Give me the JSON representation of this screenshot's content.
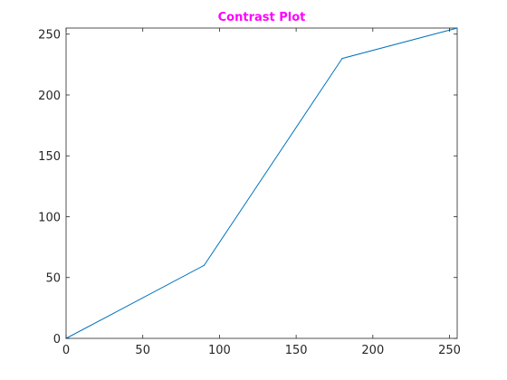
{
  "chart_data": {
    "type": "line",
    "title": "Contrast Plot",
    "title_color": "#ff00ff",
    "line_color": "#0072bd",
    "axis_color": "#262626",
    "xlim": [
      0,
      255
    ],
    "ylim": [
      0,
      255
    ],
    "xticks": [
      0,
      50,
      100,
      150,
      200,
      250
    ],
    "yticks": [
      0,
      50,
      100,
      150,
      200,
      250
    ],
    "grid": false,
    "series": [
      {
        "x": [
          0,
          90,
          180,
          255
        ],
        "y": [
          0,
          60,
          230,
          255
        ]
      }
    ]
  }
}
